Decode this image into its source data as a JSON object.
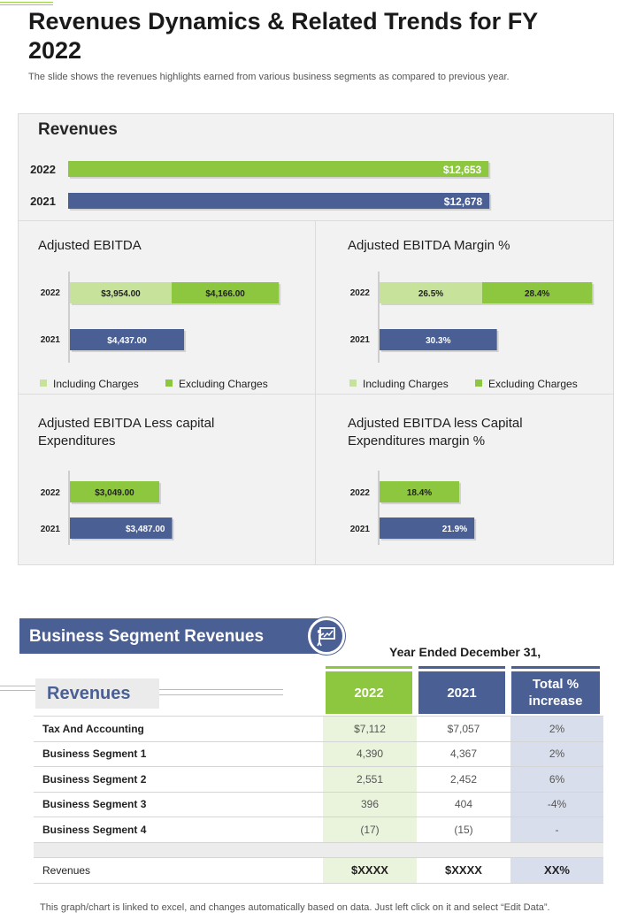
{
  "header": {
    "title": "Revenues Dynamics & Related Trends for FY 2022",
    "subtitle": "The slide shows the revenues highlights earned from various business segments as compared to previous year."
  },
  "colors": {
    "green": "#8dc63f",
    "light_green": "#c6e29b",
    "navy": "#4a5f94",
    "panel_bg": "#f2f2f2"
  },
  "chart_data": [
    {
      "type": "bar",
      "orientation": "horizontal",
      "title": "Revenues",
      "categories": [
        "2022",
        "2021"
      ],
      "values": [
        12653,
        12678
      ],
      "labels": [
        "$12,653",
        "$12,678"
      ]
    },
    {
      "type": "bar",
      "orientation": "horizontal",
      "stacked": true,
      "title": "Adjusted EBITDA",
      "categories": [
        "2022",
        "2021"
      ],
      "series": [
        {
          "name": "Including Charges",
          "values": [
            3954.0,
            4437.0
          ],
          "labels": [
            "$3,954.00",
            "$4,437.00"
          ]
        },
        {
          "name": "Excluding Charges",
          "values": [
            4166.0,
            null
          ],
          "labels": [
            "$4,166.00",
            ""
          ]
        }
      ],
      "legend": [
        "Including Charges",
        "Excluding Charges"
      ],
      "legend_position": "bottom"
    },
    {
      "type": "bar",
      "orientation": "horizontal",
      "stacked": true,
      "title": "Adjusted EBITDA Margin %",
      "categories": [
        "2022",
        "2021"
      ],
      "series": [
        {
          "name": "Including Charges",
          "values": [
            26.5,
            30.3
          ],
          "labels": [
            "26.5%",
            "30.3%"
          ]
        },
        {
          "name": "Excluding Charges",
          "values": [
            28.4,
            null
          ],
          "labels": [
            "28.4%",
            ""
          ]
        }
      ],
      "legend": [
        "Including Charges",
        "Excluding Charges"
      ],
      "legend_position": "bottom"
    },
    {
      "type": "bar",
      "orientation": "horizontal",
      "title": "Adjusted EBITDA Less capital Expenditures",
      "categories": [
        "2022",
        "2021"
      ],
      "values": [
        3049.0,
        3487.0
      ],
      "labels": [
        "$3,049.00",
        "$3,487.00"
      ]
    },
    {
      "type": "bar",
      "orientation": "horizontal",
      "title": "Adjusted EBITDA less Capital Expenditures margin %",
      "categories": [
        "2022",
        "2021"
      ],
      "values": [
        18.4,
        21.9
      ],
      "labels": [
        "18.4%",
        "21.9%"
      ]
    }
  ],
  "segment": {
    "banner": "Business Segment Revenues",
    "icon": "presentation-board-icon",
    "year_ended": "Year Ended December 31,",
    "revenues_label": "Revenues",
    "headers": {
      "y2022": "2022",
      "y2021": "2021",
      "total": "Total % increase"
    },
    "rows": [
      {
        "label": "Tax And Accounting",
        "y2022": "$7,112",
        "y2021": "$7,057",
        "total": "2%"
      },
      {
        "label": "Business Segment 1",
        "y2022": "4,390",
        "y2021": "4,367",
        "total": "2%"
      },
      {
        "label": "Business Segment 2",
        "y2022": "2,551",
        "y2021": "2,452",
        "total": "6%"
      },
      {
        "label": "Business Segment 3",
        "y2022": "396",
        "y2021": "404",
        "total": "-4%"
      },
      {
        "label": "Business Segment 4",
        "y2022": "(17)",
        "y2021": "(15)",
        "total": "-"
      }
    ],
    "total_row": {
      "label": "Revenues",
      "y2022": "$XXXX",
      "y2021": "$XXXX",
      "total": "XX%"
    }
  },
  "footnote": "This graph/chart is linked to excel,  and changes automatically based on data. Just left click on it and select “Edit Data”."
}
